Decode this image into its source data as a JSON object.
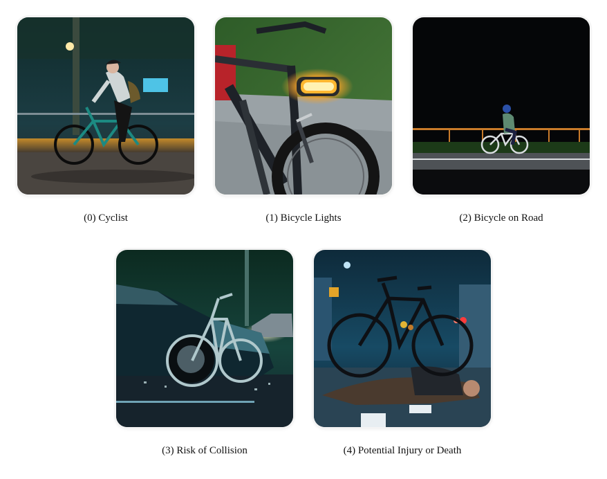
{
  "items": [
    {
      "caption": "(0) Cyclist",
      "image": "cyclist-night-photo"
    },
    {
      "caption": "(1) Bicycle Lights",
      "image": "bicycle-front-light-photo"
    },
    {
      "caption": "(2) Bicycle on Road",
      "image": "bicycle-on-dark-road-photo"
    },
    {
      "caption": "(3) Risk of Collision",
      "image": "car-bicycle-collision-photo"
    },
    {
      "caption": "(4) Potential Injury or Death",
      "image": "injured-cyclist-photo"
    }
  ]
}
